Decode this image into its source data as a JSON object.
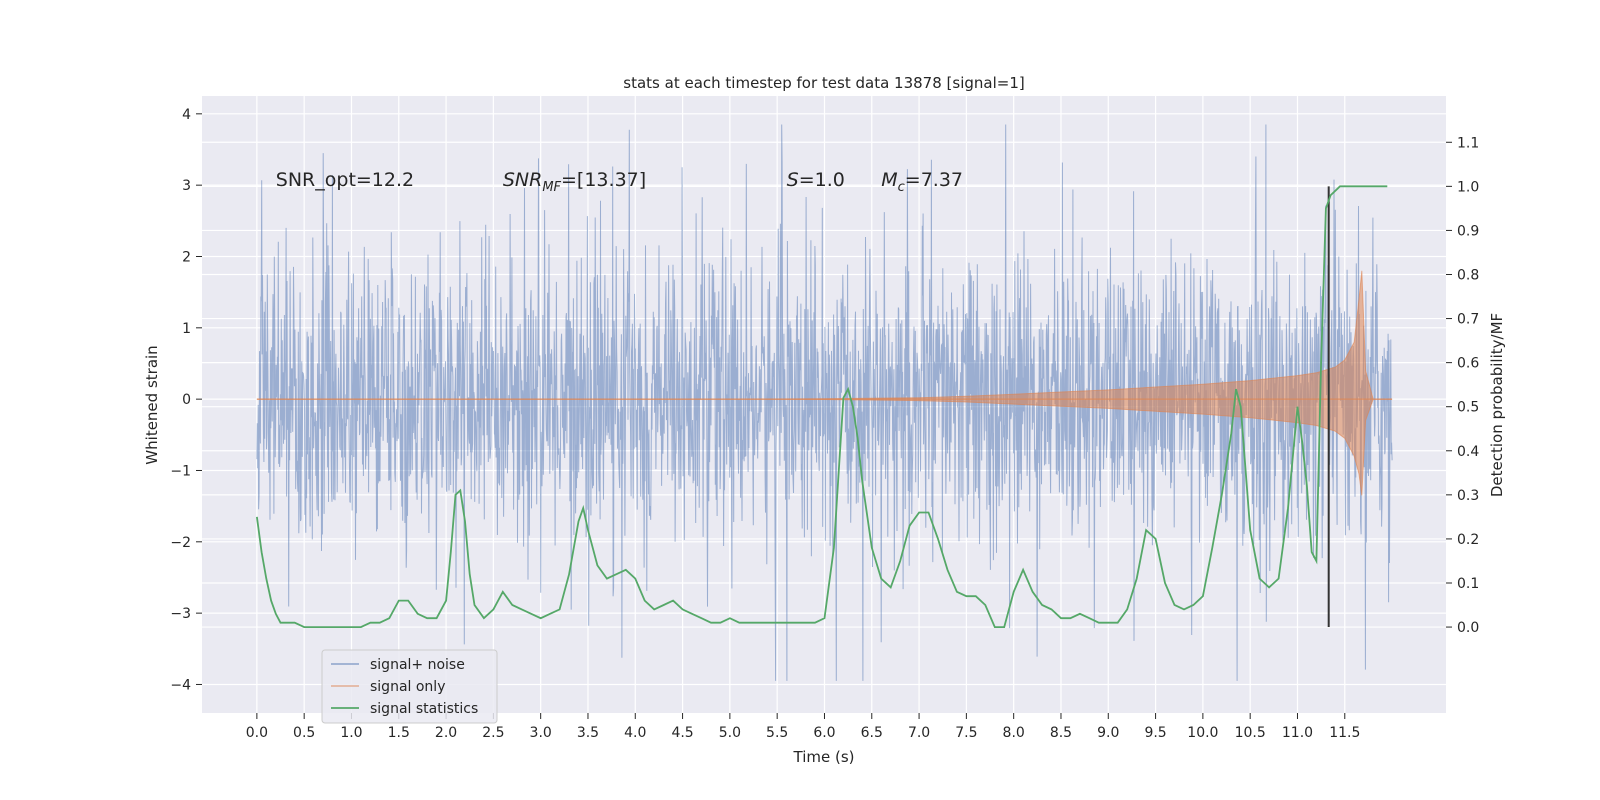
{
  "chart_data": {
    "type": "line",
    "title": "stats at each timestep for test data 13878 [signal=1]",
    "xlabel": "Time (s)",
    "ylabel": "Whitened strain",
    "y2label": "Detection probability/MF",
    "xlim": [
      -0.58,
      12.57
    ],
    "ylim": [
      -4.4,
      4.25
    ],
    "y2lim": [
      -0.195,
      1.205
    ],
    "x_ticks": [
      0.0,
      0.5,
      1.0,
      1.5,
      2.0,
      2.5,
      3.0,
      3.5,
      4.0,
      4.5,
      5.0,
      5.5,
      6.0,
      6.5,
      7.0,
      7.5,
      8.0,
      8.5,
      9.0,
      9.5,
      10.0,
      10.5,
      11.0,
      11.5
    ],
    "x_tick_labels": [
      "0.0",
      "0.5",
      "1.0",
      "1.5",
      "2.0",
      "2.5",
      "3.0",
      "3.5",
      "4.0",
      "4.5",
      "5.0",
      "5.5",
      "6.0",
      "6.5",
      "7.0",
      "7.5",
      "8.0",
      "8.5",
      "9.0",
      "9.5",
      "10.0",
      "10.5",
      "11.0",
      "11.5"
    ],
    "y_ticks": [
      -4,
      -3,
      -2,
      -1,
      0,
      1,
      2,
      3,
      4
    ],
    "y_tick_labels": [
      "−4",
      "−3",
      "−2",
      "−1",
      "0",
      "1",
      "2",
      "3",
      "4"
    ],
    "y2_ticks": [
      0.0,
      0.1,
      0.2,
      0.3,
      0.4,
      0.5,
      0.6,
      0.7,
      0.8,
      0.9,
      1.0,
      1.1
    ],
    "y2_tick_labels": [
      "0.0",
      "0.1",
      "0.2",
      "0.3",
      "0.4",
      "0.5",
      "0.6",
      "0.7",
      "0.8",
      "0.9",
      "1.0",
      "1.1"
    ],
    "grid": true,
    "legend_position": "lower-left",
    "annotations": [
      {
        "text": "SNR_opt=12.2",
        "x": 0.2,
        "y": 3.0
      },
      {
        "text": "SNR_MF=[13.37]",
        "x": 2.6,
        "y": 3.0
      },
      {
        "text": "S=1.0",
        "x": 5.6,
        "y": 3.0
      },
      {
        "text": "M_c=7.37",
        "x": 6.6,
        "y": 3.0
      }
    ],
    "series": [
      {
        "name": "signal+ noise",
        "axis": "left",
        "color": "#4c72b0",
        "alpha": 0.5,
        "x_range": [
          0.0,
          12.0
        ],
        "typical_band": [
          -1.5,
          1.7
        ],
        "peak_max": 3.85,
        "peak_min": -3.95
      },
      {
        "name": "signal only",
        "axis": "left",
        "color": "#dd8452",
        "alpha": 0.5,
        "envelope_x": [
          0.0,
          5.0,
          6.0,
          7.0,
          7.5,
          8.0,
          8.5,
          9.0,
          9.5,
          10.0,
          10.5,
          11.0,
          11.2,
          11.4,
          11.5,
          11.6,
          11.65,
          11.68,
          11.72,
          11.8,
          12.0
        ],
        "envelope_y": [
          0.0,
          0.0,
          0.005,
          0.02,
          0.04,
          0.07,
          0.1,
          0.13,
          0.17,
          0.21,
          0.26,
          0.33,
          0.37,
          0.45,
          0.55,
          0.8,
          1.4,
          1.8,
          0.4,
          0.0,
          0.0
        ]
      },
      {
        "name": "signal statistics",
        "axis": "right",
        "color": "#55a868",
        "x": [
          0.0,
          0.05,
          0.1,
          0.15,
          0.2,
          0.25,
          0.3,
          0.4,
          0.5,
          0.6,
          0.7,
          0.8,
          0.9,
          1.0,
          1.1,
          1.2,
          1.3,
          1.4,
          1.5,
          1.6,
          1.7,
          1.8,
          1.9,
          2.0,
          2.05,
          2.1,
          2.15,
          2.2,
          2.25,
          2.3,
          2.4,
          2.5,
          2.6,
          2.7,
          2.8,
          2.9,
          3.0,
          3.1,
          3.2,
          3.3,
          3.4,
          3.45,
          3.5,
          3.6,
          3.7,
          3.8,
          3.9,
          4.0,
          4.1,
          4.2,
          4.3,
          4.4,
          4.5,
          4.6,
          4.7,
          4.8,
          4.9,
          5.0,
          5.1,
          5.2,
          5.3,
          5.4,
          5.5,
          5.6,
          5.7,
          5.8,
          5.9,
          6.0,
          6.1,
          6.2,
          6.25,
          6.3,
          6.35,
          6.4,
          6.5,
          6.6,
          6.7,
          6.8,
          6.9,
          7.0,
          7.1,
          7.2,
          7.3,
          7.4,
          7.5,
          7.6,
          7.7,
          7.8,
          7.9,
          8.0,
          8.1,
          8.2,
          8.3,
          8.4,
          8.5,
          8.6,
          8.7,
          8.8,
          8.9,
          9.0,
          9.1,
          9.2,
          9.3,
          9.4,
          9.5,
          9.6,
          9.7,
          9.8,
          9.9,
          10.0,
          10.1,
          10.2,
          10.3,
          10.35,
          10.4,
          10.5,
          10.6,
          10.7,
          10.8,
          10.9,
          11.0,
          11.05,
          11.1,
          11.15,
          11.2,
          11.25,
          11.3,
          11.35,
          11.4,
          11.45,
          11.5,
          11.6,
          11.7,
          11.8,
          11.9,
          11.95
        ],
        "y": [
          0.25,
          0.17,
          0.11,
          0.06,
          0.03,
          0.01,
          0.01,
          0.01,
          0.0,
          0.0,
          0.0,
          0.0,
          0.0,
          0.0,
          0.0,
          0.01,
          0.01,
          0.02,
          0.06,
          0.06,
          0.03,
          0.02,
          0.02,
          0.06,
          0.17,
          0.3,
          0.31,
          0.24,
          0.12,
          0.05,
          0.02,
          0.04,
          0.08,
          0.05,
          0.04,
          0.03,
          0.02,
          0.03,
          0.04,
          0.12,
          0.24,
          0.27,
          0.22,
          0.14,
          0.11,
          0.12,
          0.13,
          0.11,
          0.06,
          0.04,
          0.05,
          0.06,
          0.04,
          0.03,
          0.02,
          0.01,
          0.01,
          0.02,
          0.01,
          0.01,
          0.01,
          0.01,
          0.01,
          0.01,
          0.01,
          0.01,
          0.01,
          0.02,
          0.18,
          0.52,
          0.54,
          0.5,
          0.43,
          0.33,
          0.18,
          0.11,
          0.09,
          0.15,
          0.23,
          0.26,
          0.26,
          0.2,
          0.13,
          0.08,
          0.07,
          0.07,
          0.05,
          0.0,
          0.0,
          0.08,
          0.13,
          0.08,
          0.05,
          0.04,
          0.02,
          0.02,
          0.03,
          0.02,
          0.01,
          0.01,
          0.01,
          0.04,
          0.11,
          0.22,
          0.2,
          0.1,
          0.05,
          0.04,
          0.05,
          0.07,
          0.18,
          0.3,
          0.44,
          0.54,
          0.5,
          0.22,
          0.11,
          0.09,
          0.11,
          0.27,
          0.5,
          0.42,
          0.32,
          0.17,
          0.15,
          0.6,
          0.95,
          0.98,
          0.99,
          1.0,
          1.0,
          1.0,
          1.0,
          1.0,
          1.0,
          1.0
        ]
      }
    ],
    "vertical_lines": [
      {
        "x": 11.33,
        "y1": 1.0,
        "y2": 0.0,
        "axis": "right",
        "color": "#333333"
      }
    ]
  }
}
